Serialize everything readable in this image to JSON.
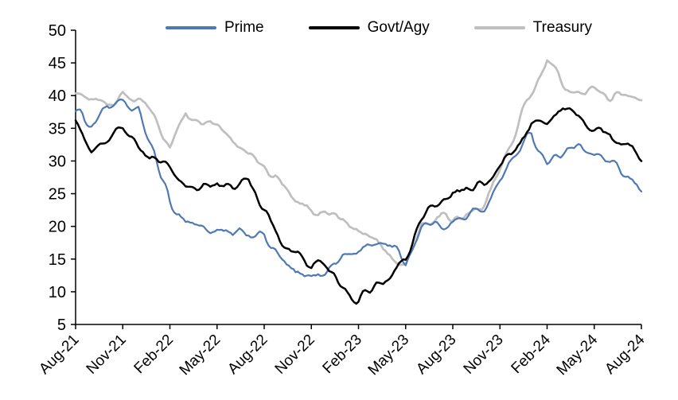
{
  "chart_data": {
    "type": "line",
    "title": "",
    "xlabel": "",
    "ylabel": "",
    "ylim": [
      5,
      50
    ],
    "y_tick_step": 5,
    "x_tick_every": 3,
    "grid": false,
    "legend_position": "top",
    "categories": [
      "Aug-21",
      "Sep-21",
      "Oct-21",
      "Nov-21",
      "Dec-21",
      "Jan-22",
      "Feb-22",
      "Mar-22",
      "Apr-22",
      "May-22",
      "Jun-22",
      "Jul-22",
      "Aug-22",
      "Sep-22",
      "Oct-22",
      "Nov-22",
      "Dec-22",
      "Jan-23",
      "Feb-23",
      "Mar-23",
      "Apr-23",
      "May-23",
      "Jun-23",
      "Jul-23",
      "Aug-23",
      "Sep-23",
      "Oct-23",
      "Nov-23",
      "Dec-23",
      "Jan-24",
      "Feb-24",
      "Mar-24",
      "Apr-24",
      "May-24",
      "Jun-24",
      "Jul-24",
      "Aug-24"
    ],
    "x_tick_labels": [
      "Aug-21",
      "Nov-21",
      "Feb-22",
      "May-22",
      "Aug-22",
      "Nov-22",
      "Feb-23",
      "May-23",
      "Aug-23",
      "Nov-23",
      "Feb-24",
      "May-24",
      "Aug-24"
    ],
    "y_tick_labels": [
      "5",
      "10",
      "15",
      "20",
      "25",
      "30",
      "35",
      "40",
      "45",
      "50"
    ],
    "series": [
      {
        "name": "Prime",
        "color": "#4e79b5",
        "values": [
          38,
          35.5,
          38.5,
          38.5,
          37.5,
          31,
          23.5,
          21,
          20,
          19,
          18.5,
          19,
          18.5,
          15,
          12.5,
          12,
          13.5,
          15.5,
          16,
          17.5,
          17.5,
          14.5,
          20,
          20.5,
          20.5,
          21.5,
          23,
          27,
          31,
          34,
          30,
          31.5,
          32,
          31,
          29.5,
          27.5,
          25.5
        ]
      },
      {
        "name": "Govt/Agy",
        "color": "#000000",
        "values": [
          35,
          31.5,
          33.5,
          34.5,
          32,
          30.5,
          28.5,
          25.5,
          26,
          26.5,
          25.5,
          27.5,
          22,
          18.5,
          15.5,
          13.5,
          13.5,
          10.5,
          8.5,
          11,
          11.5,
          15,
          21,
          23,
          25,
          25.5,
          26.5,
          29,
          32,
          35.5,
          36,
          37.5,
          36.5,
          35,
          34,
          33,
          31
        ]
      },
      {
        "name": "Treasury",
        "color": "#bfbfbf",
        "values": [
          41,
          40,
          38.5,
          40.5,
          40,
          36.5,
          31.5,
          38.5,
          35.5,
          36,
          33.5,
          31,
          29,
          26.5,
          24,
          22.5,
          22,
          21.5,
          20,
          18,
          16,
          13.5,
          20.5,
          21.5,
          21,
          22,
          23.5,
          29,
          35,
          40,
          45,
          42,
          40.5,
          40,
          40,
          39.5,
          39
        ]
      }
    ]
  }
}
